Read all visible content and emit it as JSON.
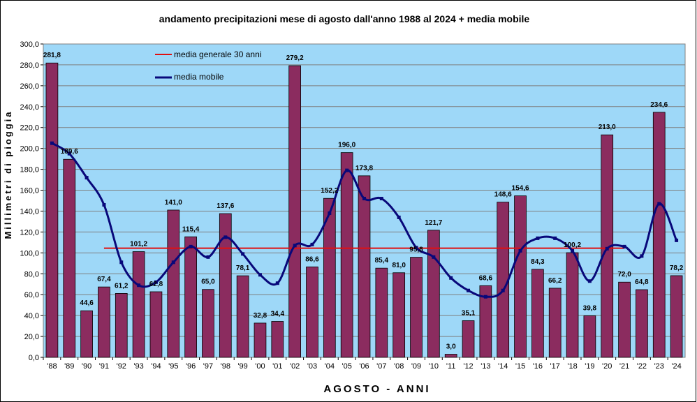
{
  "chart_data": {
    "type": "bar",
    "title": "andamento precipitazioni mese di agosto dall'anno 1988 al 2024 + media mobile",
    "xlabel": "AGOSTO - ANNI",
    "ylabel": "Millimetri di pioggia",
    "ylim": [
      0,
      300
    ],
    "y_ticks": [
      "0,0",
      "20,0",
      "40,0",
      "60,0",
      "80,0",
      "100,0",
      "120,0",
      "140,0",
      "160,0",
      "180,0",
      "200,0",
      "220,0",
      "240,0",
      "260,0",
      "280,0",
      "300,0"
    ],
    "grid": true,
    "legend_position": "top-left",
    "categories": [
      "'88",
      "'89",
      "'90",
      "'91",
      "'92",
      "'93",
      "'94",
      "'95",
      "'96",
      "'97",
      "'98",
      "'99",
      "'00",
      "'01",
      "'02",
      "'03",
      "'04",
      "'05",
      "'06",
      "'07",
      "'08",
      "'09",
      "'10",
      "'11",
      "'12",
      "'13",
      "'14",
      "'15",
      "'16",
      "'17",
      "'18",
      "'19",
      "'20",
      "'21",
      "'22",
      "'23",
      "'24"
    ],
    "series": [
      {
        "kind": "bar",
        "values": [
          281.8,
          189.6,
          44.6,
          67.4,
          61.2,
          101.2,
          62.8,
          141.0,
          115.4,
          65.0,
          137.6,
          78.1,
          32.8,
          34.4,
          279.2,
          86.6,
          152.2,
          196.0,
          173.8,
          85.4,
          81.0,
          95.8,
          121.7,
          3.0,
          35.1,
          68.6,
          148.6,
          154.6,
          84.3,
          66.2,
          100.2,
          39.8,
          213.0,
          72.0,
          64.8,
          234.6,
          78.2
        ],
        "labels": [
          "281,8",
          "189,6",
          "44,6",
          "67,4",
          "61,2",
          "101,2",
          "62,8",
          "141,0",
          "115,4",
          "65,0",
          "137,6",
          "78,1",
          "32,8",
          "34,4",
          "279,2",
          "86,6",
          "152,2",
          "196,0",
          "173,8",
          "85,4",
          "81,0",
          "95,8",
          "121,7",
          "3,0",
          "35,1",
          "68,6",
          "148,6",
          "154,6",
          "84,3",
          "66,2",
          "100,2",
          "39,8",
          "213,0",
          "72,0",
          "64,8",
          "234,6",
          "78,2"
        ]
      },
      {
        "kind": "line",
        "name": "media mobile",
        "values": [
          205,
          195,
          172,
          146,
          91,
          69,
          72,
          91,
          106,
          96,
          115,
          99,
          79,
          71,
          107,
          108,
          138,
          179,
          152,
          152,
          134,
          105,
          96,
          76,
          64,
          58,
          64,
          102,
          114,
          114,
          102,
          73,
          104,
          106,
          97,
          147,
          112
        ]
      },
      {
        "kind": "hline",
        "name": "media generale 30 anni",
        "value": 104.5,
        "from_index": 3,
        "to_index": 33
      }
    ],
    "colors": {
      "plot_bg": "#9ed8f8",
      "bar": "#8b2c5f",
      "line": "#08087a",
      "hline": "#e01010",
      "grid": "#7f7f7f"
    }
  }
}
